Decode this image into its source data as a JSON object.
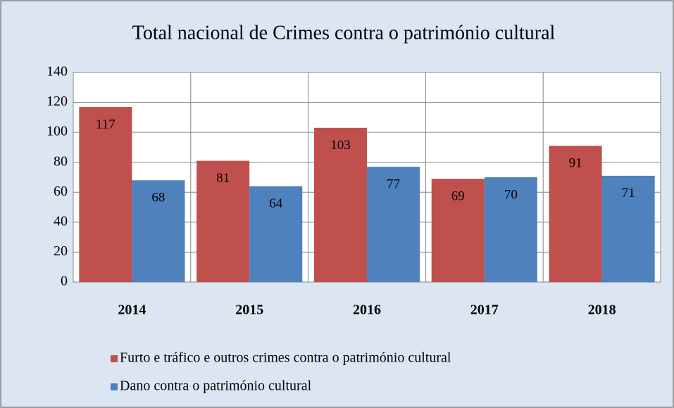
{
  "chart_data": {
    "type": "bar",
    "title": "Total nacional de Crimes contra o património cultural",
    "categories": [
      "2014",
      "2015",
      "2016",
      "2017",
      "2018"
    ],
    "series": [
      {
        "name": "Furto e tráfico e outros crimes contra o património cultural",
        "color": "#c0504d",
        "values": [
          117,
          81,
          103,
          69,
          91
        ]
      },
      {
        "name": "Dano contra o património cultural",
        "color": "#4f81bd",
        "values": [
          68,
          64,
          77,
          70,
          71
        ]
      }
    ],
    "ylim": [
      0,
      140
    ],
    "yticks": [
      0,
      20,
      40,
      60,
      80,
      100,
      120,
      140
    ],
    "grid": true,
    "legend": "bottom"
  }
}
